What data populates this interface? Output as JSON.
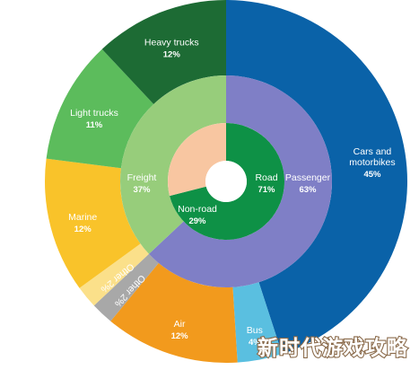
{
  "chart_data": {
    "type": "sunburst",
    "title": "",
    "inner_ring": [
      {
        "label": "Road",
        "value": 71,
        "value_text": "71%",
        "color": "#0e9146"
      },
      {
        "label": "Non-road",
        "value": 29,
        "value_text": "29%",
        "color": "#f8c6a1"
      }
    ],
    "middle_ring": [
      {
        "label": "Passenger",
        "value": 63,
        "value_text": "63%",
        "color": "#7f7fc6",
        "parent": "Road"
      },
      {
        "label": "Freight",
        "value": 37,
        "value_text": "37%",
        "color": "#97cd7b",
        "parent": "Road"
      }
    ],
    "outer_ring": [
      {
        "label": "Cars and motorbikes",
        "lines": [
          "Cars and",
          "motorbikes"
        ],
        "value": 45,
        "value_text": "45%",
        "color": "#0a62a8",
        "parent": "Passenger"
      },
      {
        "label": "Bus",
        "lines": [
          "Bus"
        ],
        "value": 4,
        "value_text": "4%",
        "color": "#5abfe0",
        "parent": "Passenger"
      },
      {
        "label": "Air",
        "lines": [
          "Air"
        ],
        "value": 12,
        "value_text": "12%",
        "color": "#f29a1d",
        "parent": "Non-road"
      },
      {
        "label": "Other",
        "lines": [
          "Other"
        ],
        "value": 2,
        "value_text": "2%",
        "color": "#a8a8a8",
        "parent": "Non-road"
      },
      {
        "label": "Other",
        "lines": [
          "Other"
        ],
        "value": 2,
        "value_text": "2%",
        "color": "#fbe08a",
        "parent": "Non-road"
      },
      {
        "label": "Marine",
        "lines": [
          "Marine"
        ],
        "value": 12,
        "value_text": "12%",
        "color": "#f9c32a",
        "parent": "Non-road"
      },
      {
        "label": "Light trucks",
        "lines": [
          "Light trucks"
        ],
        "value": 11,
        "value_text": "11%",
        "color": "#5cbc5c",
        "parent": "Freight"
      },
      {
        "label": "Heavy trucks",
        "lines": [
          "Heavy trucks"
        ],
        "value": 12,
        "value_text": "12%",
        "color": "#1d6b34",
        "parent": "Freight"
      }
    ]
  },
  "watermark": "新时代游戏攻略"
}
